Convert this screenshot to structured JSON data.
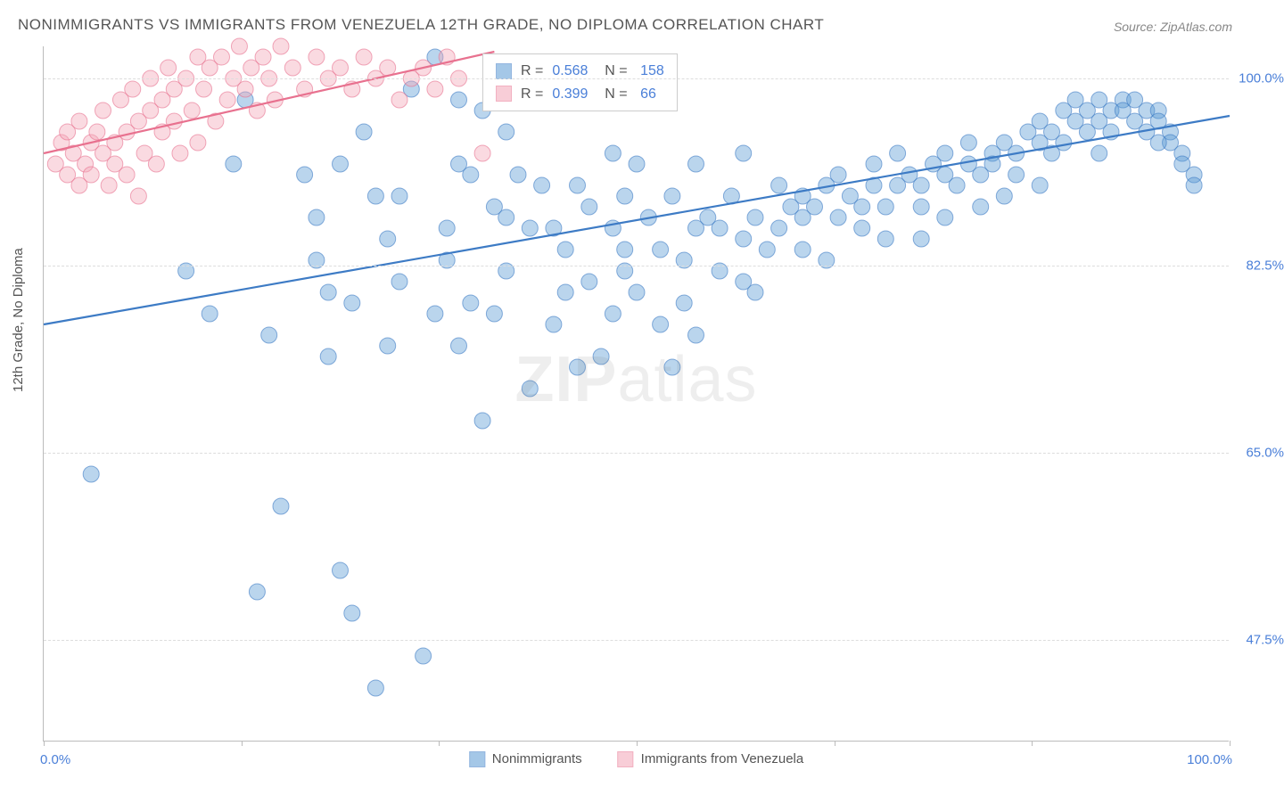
{
  "title": "NONIMMIGRANTS VS IMMIGRANTS FROM VENEZUELA 12TH GRADE, NO DIPLOMA CORRELATION CHART",
  "source": "Source: ZipAtlas.com",
  "ylabel": "12th Grade, No Diploma",
  "watermark": {
    "bold": "ZIP",
    "rest": "atlas"
  },
  "chart": {
    "type": "scatter",
    "background_color": "#ffffff",
    "grid_color": "#dddddd",
    "axis_color": "#bbbbbb",
    "tick_label_color": "#4a7fd8",
    "label_color": "#555555",
    "xlim": [
      0,
      100
    ],
    "ylim": [
      38,
      103
    ],
    "ytick_labels": [
      "47.5%",
      "65.0%",
      "82.5%",
      "100.0%"
    ],
    "ytick_values": [
      47.5,
      65.0,
      82.5,
      100.0
    ],
    "xtick_marks": [
      0,
      16.7,
      33.3,
      50,
      66.7,
      83.3,
      100
    ],
    "xlim_labels": {
      "left": "0.0%",
      "right": "100.0%"
    },
    "marker_radius": 9,
    "marker_opacity": 0.42,
    "line_width": 2.2,
    "series": [
      {
        "name": "Nonimmigrants",
        "color": "#5b9bd5",
        "stroke": "#3d7bc5",
        "R": "0.568",
        "N": "158",
        "trend": {
          "x1": 0,
          "y1": 77,
          "x2": 100,
          "y2": 96.5
        },
        "points": [
          [
            4,
            63
          ],
          [
            12,
            82
          ],
          [
            16,
            92
          ],
          [
            17,
            98
          ],
          [
            18,
            52
          ],
          [
            20,
            60
          ],
          [
            22,
            91
          ],
          [
            23,
            87
          ],
          [
            24,
            80
          ],
          [
            25,
            54
          ],
          [
            25,
            92
          ],
          [
            26,
            50
          ],
          [
            26,
            79
          ],
          [
            27,
            95
          ],
          [
            28,
            43
          ],
          [
            28,
            89
          ],
          [
            29,
            75
          ],
          [
            30,
            81
          ],
          [
            30,
            89
          ],
          [
            31,
            99
          ],
          [
            32,
            46
          ],
          [
            33,
            102
          ],
          [
            33,
            78
          ],
          [
            34,
            86
          ],
          [
            35,
            92
          ],
          [
            35,
            98
          ],
          [
            36,
            91
          ],
          [
            36,
            79
          ],
          [
            37,
            97
          ],
          [
            38,
            88
          ],
          [
            38,
            78
          ],
          [
            39,
            95
          ],
          [
            39,
            82
          ],
          [
            40,
            91
          ],
          [
            41,
            86
          ],
          [
            41,
            99
          ],
          [
            42,
            90
          ],
          [
            43,
            86
          ],
          [
            43,
            77
          ],
          [
            44,
            84
          ],
          [
            45,
            90
          ],
          [
            46,
            88
          ],
          [
            46,
            81
          ],
          [
            47,
            74
          ],
          [
            48,
            86
          ],
          [
            48,
            93
          ],
          [
            49,
            89
          ],
          [
            49,
            84
          ],
          [
            50,
            92
          ],
          [
            50,
            80
          ],
          [
            51,
            87
          ],
          [
            52,
            84
          ],
          [
            53,
            73
          ],
          [
            53,
            89
          ],
          [
            54,
            83
          ],
          [
            55,
            86
          ],
          [
            55,
            92
          ],
          [
            56,
            87
          ],
          [
            57,
            86
          ],
          [
            57,
            82
          ],
          [
            58,
            89
          ],
          [
            59,
            85
          ],
          [
            59,
            93
          ],
          [
            60,
            87
          ],
          [
            61,
            84
          ],
          [
            62,
            90
          ],
          [
            62,
            86
          ],
          [
            63,
            88
          ],
          [
            64,
            87
          ],
          [
            64,
            89
          ],
          [
            65,
            88
          ],
          [
            66,
            90
          ],
          [
            67,
            87
          ],
          [
            67,
            91
          ],
          [
            68,
            89
          ],
          [
            69,
            88
          ],
          [
            70,
            90
          ],
          [
            70,
            92
          ],
          [
            71,
            88
          ],
          [
            72,
            90
          ],
          [
            72,
            93
          ],
          [
            73,
            91
          ],
          [
            74,
            90
          ],
          [
            74,
            88
          ],
          [
            75,
            92
          ],
          [
            76,
            91
          ],
          [
            76,
            93
          ],
          [
            77,
            90
          ],
          [
            78,
            92
          ],
          [
            78,
            94
          ],
          [
            79,
            91
          ],
          [
            80,
            93
          ],
          [
            80,
            92
          ],
          [
            81,
            94
          ],
          [
            82,
            93
          ],
          [
            82,
            91
          ],
          [
            83,
            95
          ],
          [
            84,
            94
          ],
          [
            84,
            96
          ],
          [
            85,
            93
          ],
          [
            85,
            95
          ],
          [
            86,
            97
          ],
          [
            86,
            94
          ],
          [
            87,
            96
          ],
          [
            87,
            98
          ],
          [
            88,
            95
          ],
          [
            88,
            97
          ],
          [
            89,
            98
          ],
          [
            89,
            96
          ],
          [
            90,
            97
          ],
          [
            90,
            95
          ],
          [
            91,
            98
          ],
          [
            91,
            97
          ],
          [
            92,
            96
          ],
          [
            92,
            98
          ],
          [
            93,
            97
          ],
          [
            93,
            95
          ],
          [
            94,
            97
          ],
          [
            94,
            96
          ],
          [
            95,
            95
          ],
          [
            95,
            94
          ],
          [
            96,
            93
          ],
          [
            96,
            92
          ],
          [
            97,
            91
          ],
          [
            97,
            90
          ],
          [
            23,
            83
          ],
          [
            35,
            75
          ],
          [
            41,
            71
          ],
          [
            48,
            78
          ],
          [
            55,
            76
          ],
          [
            60,
            80
          ],
          [
            66,
            83
          ],
          [
            71,
            85
          ],
          [
            76,
            87
          ],
          [
            81,
            89
          ],
          [
            14,
            78
          ],
          [
            19,
            76
          ],
          [
            24,
            74
          ],
          [
            29,
            85
          ],
          [
            34,
            83
          ],
          [
            39,
            87
          ],
          [
            44,
            80
          ],
          [
            49,
            82
          ],
          [
            54,
            79
          ],
          [
            59,
            81
          ],
          [
            64,
            84
          ],
          [
            69,
            86
          ],
          [
            74,
            85
          ],
          [
            79,
            88
          ],
          [
            84,
            90
          ],
          [
            89,
            93
          ],
          [
            94,
            94
          ],
          [
            37,
            68
          ],
          [
            45,
            73
          ],
          [
            52,
            77
          ]
        ]
      },
      {
        "name": "Immigrants from Venezuela",
        "color": "#f4a6b8",
        "stroke": "#e8718f",
        "R": "0.399",
        "N": "66",
        "trend": {
          "x1": 0,
          "y1": 93,
          "x2": 38,
          "y2": 102.5
        },
        "points": [
          [
            1,
            92
          ],
          [
            1.5,
            94
          ],
          [
            2,
            91
          ],
          [
            2,
            95
          ],
          [
            2.5,
            93
          ],
          [
            3,
            90
          ],
          [
            3,
            96
          ],
          [
            3.5,
            92
          ],
          [
            4,
            94
          ],
          [
            4,
            91
          ],
          [
            4.5,
            95
          ],
          [
            5,
            93
          ],
          [
            5,
            97
          ],
          [
            5.5,
            90
          ],
          [
            6,
            94
          ],
          [
            6,
            92
          ],
          [
            6.5,
            98
          ],
          [
            7,
            95
          ],
          [
            7,
            91
          ],
          [
            7.5,
            99
          ],
          [
            8,
            96
          ],
          [
            8,
            89
          ],
          [
            8.5,
            93
          ],
          [
            9,
            100
          ],
          [
            9,
            97
          ],
          [
            9.5,
            92
          ],
          [
            10,
            98
          ],
          [
            10,
            95
          ],
          [
            10.5,
            101
          ],
          [
            11,
            96
          ],
          [
            11,
            99
          ],
          [
            11.5,
            93
          ],
          [
            12,
            100
          ],
          [
            12.5,
            97
          ],
          [
            13,
            102
          ],
          [
            13,
            94
          ],
          [
            13.5,
            99
          ],
          [
            14,
            101
          ],
          [
            14.5,
            96
          ],
          [
            15,
            102
          ],
          [
            15.5,
            98
          ],
          [
            16,
            100
          ],
          [
            16.5,
            103
          ],
          [
            17,
            99
          ],
          [
            17.5,
            101
          ],
          [
            18,
            97
          ],
          [
            18.5,
            102
          ],
          [
            19,
            100
          ],
          [
            19.5,
            98
          ],
          [
            20,
            103
          ],
          [
            21,
            101
          ],
          [
            22,
            99
          ],
          [
            23,
            102
          ],
          [
            24,
            100
          ],
          [
            25,
            101
          ],
          [
            26,
            99
          ],
          [
            27,
            102
          ],
          [
            28,
            100
          ],
          [
            29,
            101
          ],
          [
            30,
            98
          ],
          [
            31,
            100
          ],
          [
            32,
            101
          ],
          [
            33,
            99
          ],
          [
            34,
            102
          ],
          [
            35,
            100
          ],
          [
            37,
            93
          ]
        ]
      }
    ]
  },
  "legend_bottom": [
    {
      "label": "Nonimmigrants",
      "color": "#5b9bd5",
      "stroke": "#3d7bc5"
    },
    {
      "label": "Immigrants from Venezuela",
      "color": "#f4a6b8",
      "stroke": "#e8718f"
    }
  ]
}
